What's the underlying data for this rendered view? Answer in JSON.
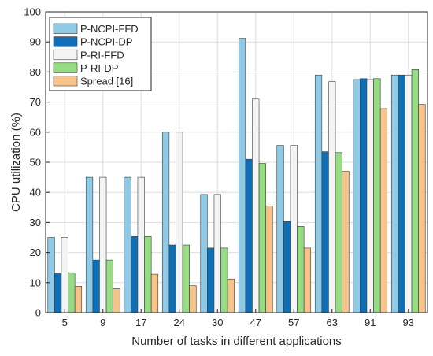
{
  "chart_data": {
    "type": "bar",
    "xlabel": "Number of tasks in different applications",
    "ylabel": "CPU utilization (%)",
    "ylim": [
      0,
      100
    ],
    "yticks": [
      0,
      10,
      20,
      30,
      40,
      50,
      60,
      70,
      80,
      90,
      100
    ],
    "grid": true,
    "legend_position": "top-left",
    "categories": [
      "5",
      "9",
      "17",
      "24",
      "30",
      "47",
      "57",
      "63",
      "91",
      "93"
    ],
    "series": [
      {
        "name": "P-NCPI-FFD",
        "color": "#8fcae6",
        "values": [
          25,
          45,
          45,
          60,
          39.3,
          91.2,
          55.6,
          79,
          77.5,
          79
        ]
      },
      {
        "name": "P-NCPI-DP",
        "color": "#0f6fb6",
        "values": [
          13.2,
          17.5,
          25.3,
          22.5,
          21.5,
          51,
          30.3,
          53.5,
          77.8,
          79
        ]
      },
      {
        "name": "P-RI-FFD",
        "color": "#f4f4f4",
        "values": [
          25,
          45,
          45,
          60,
          39.3,
          71,
          55.6,
          76.8,
          77.5,
          79
        ]
      },
      {
        "name": "P-RI-DP",
        "color": "#95dc82",
        "values": [
          13.3,
          17.5,
          25.3,
          22.5,
          21.5,
          49.6,
          28.7,
          53.2,
          77.8,
          80.8
        ]
      },
      {
        "name": "Spread [16]",
        "color": "#f8c38a",
        "values": [
          8.8,
          8,
          12.8,
          9,
          11.2,
          35.5,
          21.5,
          47,
          67.8,
          69.2
        ]
      }
    ]
  }
}
